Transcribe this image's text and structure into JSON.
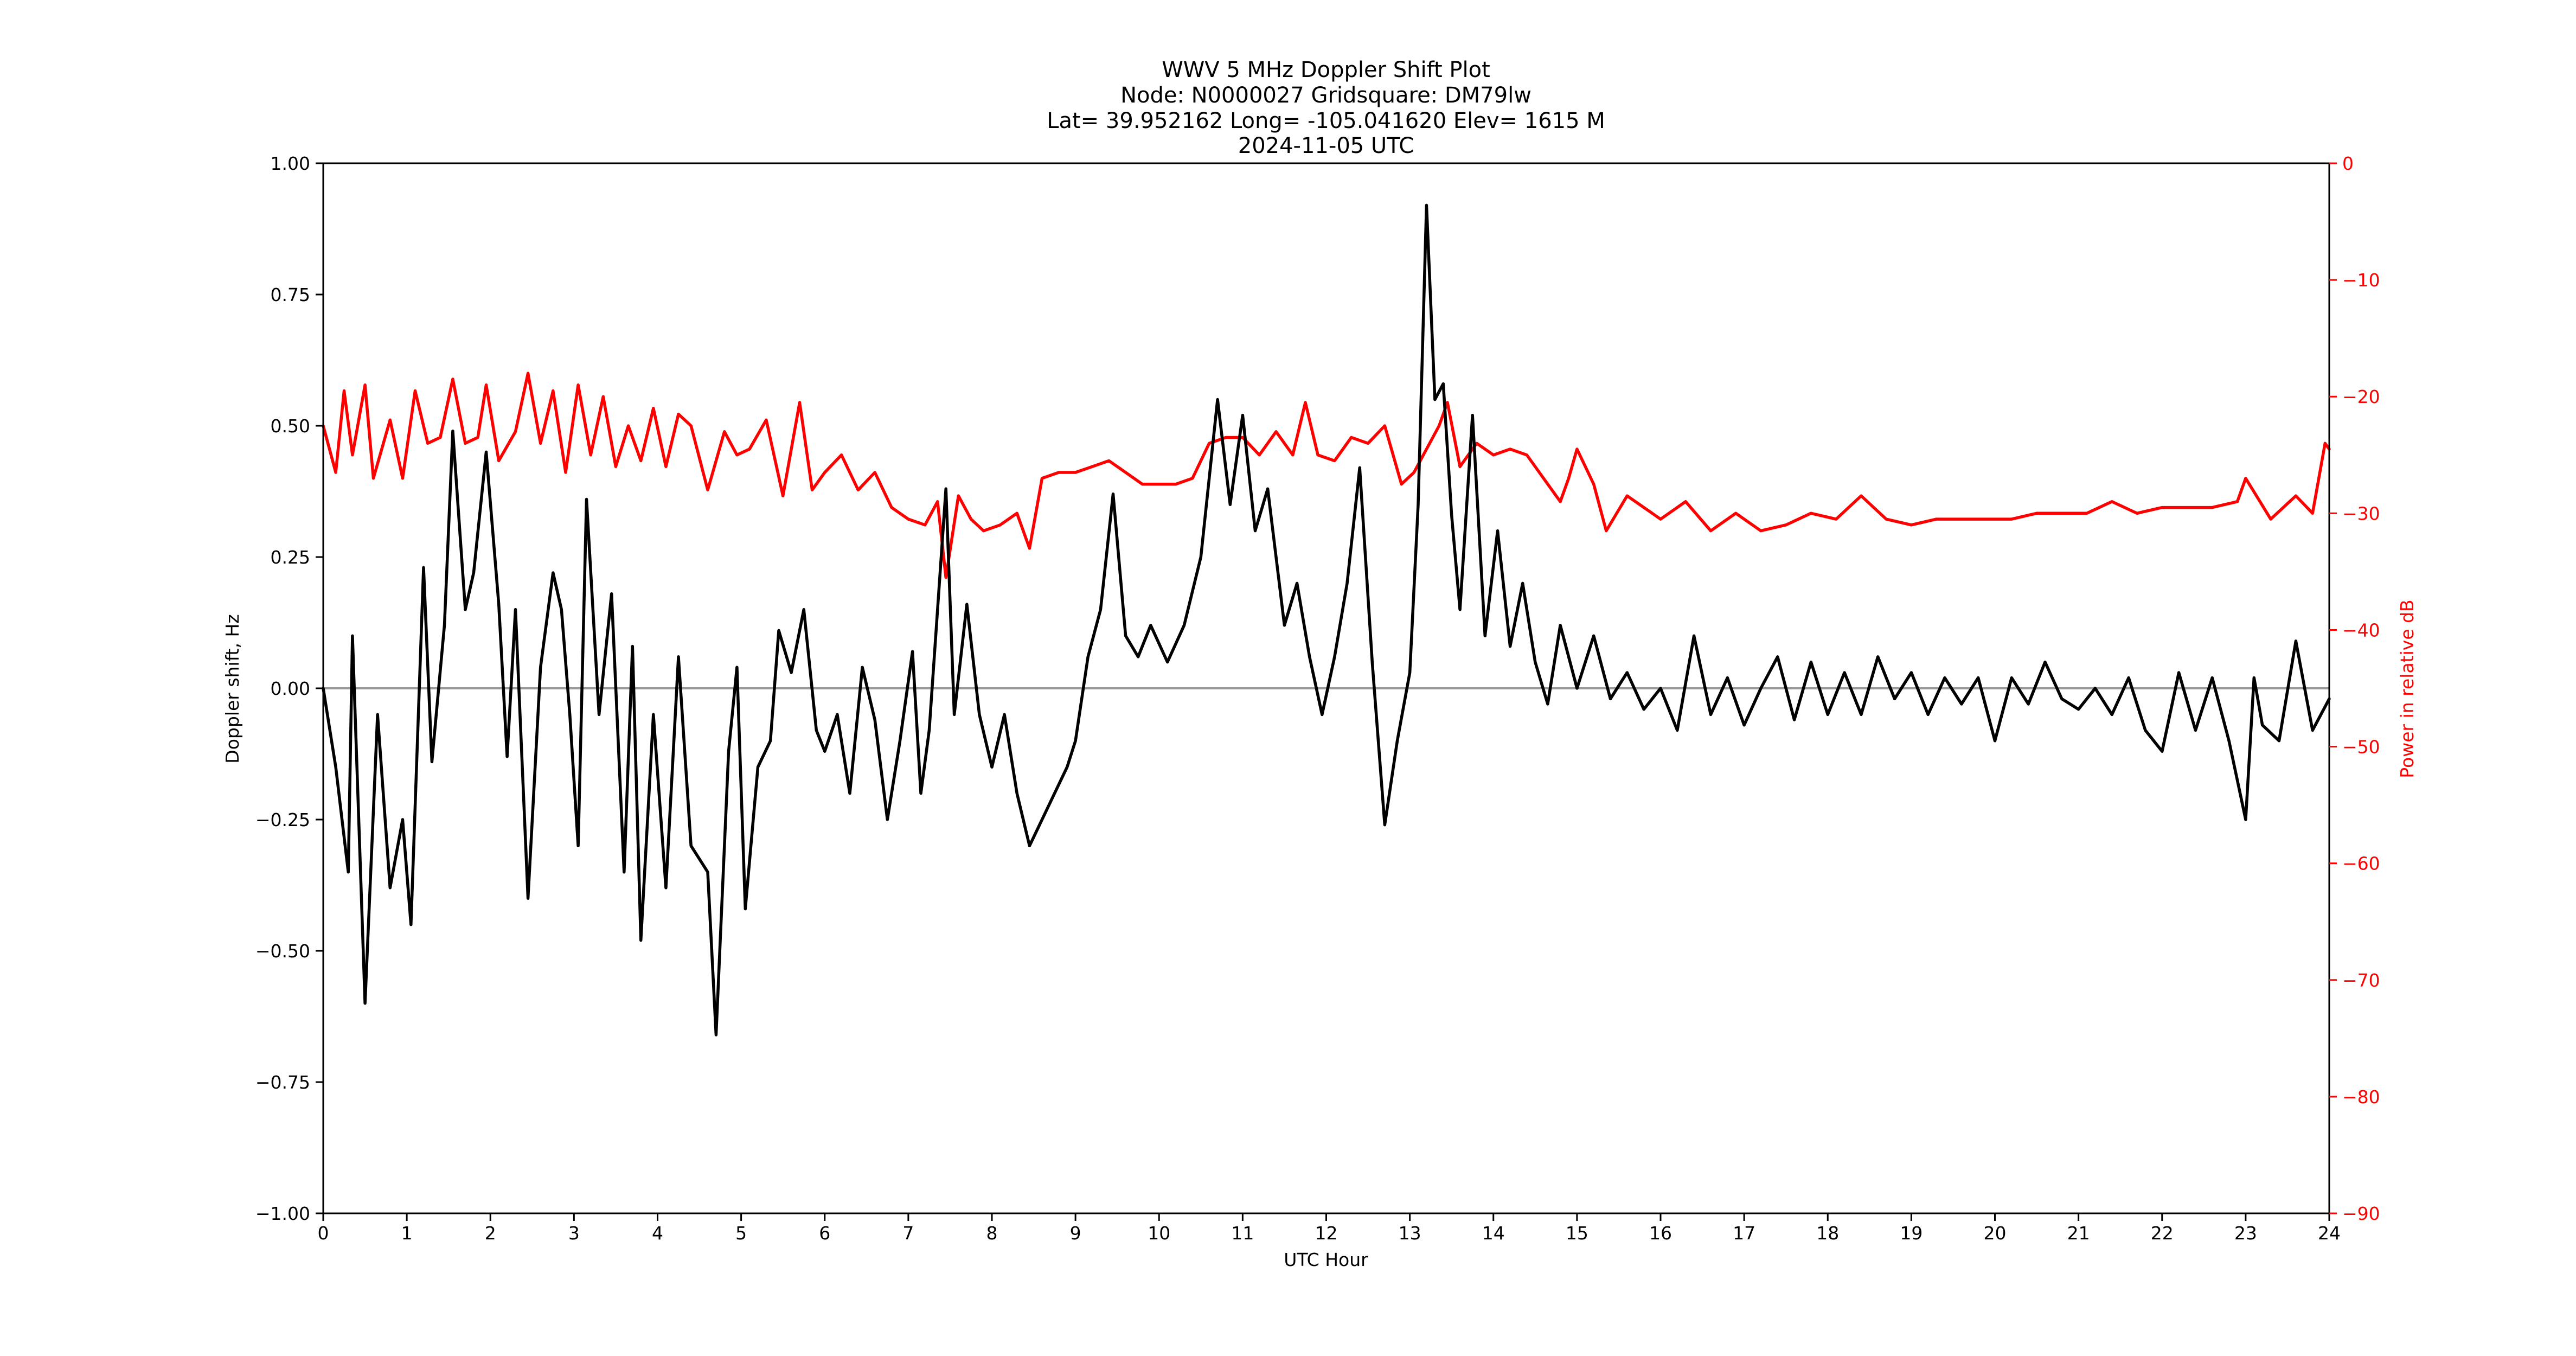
{
  "chart_data": {
    "type": "line",
    "title_lines": [
      "WWV 5 MHz Doppler Shift Plot",
      "Node:  N0000027     Gridsquare:  DM79lw",
      "Lat= 39.952162    Long= -105.041620    Elev= 1615 M",
      "2024-11-05  UTC"
    ],
    "xlabel": "UTC Hour",
    "ylabel_left": "Doppler shift, Hz",
    "ylabel_right": "Power in relative dB",
    "xlim": [
      0,
      24
    ],
    "ylim_left": [
      -1.0,
      1.0
    ],
    "ylim_right": [
      -90,
      0
    ],
    "x_ticks": [
      "0",
      "1",
      "2",
      "3",
      "4",
      "5",
      "6",
      "7",
      "8",
      "9",
      "10",
      "11",
      "12",
      "13",
      "14",
      "15",
      "16",
      "17",
      "18",
      "19",
      "20",
      "21",
      "22",
      "23",
      "24"
    ],
    "y_ticks_left": [
      "1.00",
      "0.75",
      "0.50",
      "0.25",
      "0.00",
      "−0.25",
      "−0.50",
      "−0.75",
      "−1.00"
    ],
    "y_ticks_right": [
      "0",
      "−10",
      "−20",
      "−30",
      "−40",
      "−50",
      "−60",
      "−70",
      "−80",
      "−90"
    ],
    "colors": {
      "doppler": "#000000",
      "power": "#ff0000",
      "zero_line": "#999999",
      "right_axis": "#ff0000"
    },
    "reference_line": {
      "y": 0.0
    },
    "series": [
      {
        "axis": "left",
        "x": [
          0.0,
          0.15,
          0.3,
          0.35,
          0.5,
          0.65,
          0.8,
          0.95,
          1.05,
          1.2,
          1.3,
          1.45,
          1.55,
          1.7,
          1.8,
          1.95,
          2.1,
          2.2,
          2.3,
          2.45,
          2.6,
          2.75,
          2.85,
          2.95,
          3.05,
          3.15,
          3.3,
          3.45,
          3.6,
          3.7,
          3.8,
          3.95,
          4.1,
          4.25,
          4.4,
          4.6,
          4.7,
          4.85,
          4.95,
          5.05,
          5.2,
          5.35,
          5.45,
          5.6,
          5.75,
          5.9,
          6.0,
          6.15,
          6.3,
          6.45,
          6.6,
          6.75,
          6.9,
          7.05,
          7.15,
          7.25,
          7.45,
          7.55,
          7.7,
          7.85,
          8.0,
          8.15,
          8.3,
          8.45,
          8.6,
          8.75,
          8.9,
          9.0,
          9.15,
          9.3,
          9.45,
          9.6,
          9.75,
          9.9,
          10.1,
          10.3,
          10.5,
          10.7,
          10.85,
          11.0,
          11.15,
          11.3,
          11.5,
          11.65,
          11.8,
          11.95,
          12.1,
          12.25,
          12.4,
          12.55,
          12.7,
          12.85,
          13.0,
          13.1,
          13.2,
          13.3,
          13.4,
          13.5,
          13.6,
          13.75,
          13.9,
          14.05,
          14.2,
          14.35,
          14.5,
          14.65,
          14.8,
          15.0,
          15.2,
          15.4,
          15.6,
          15.8,
          16.0,
          16.2,
          16.4,
          16.6,
          16.8,
          17.0,
          17.2,
          17.4,
          17.6,
          17.8,
          18.0,
          18.2,
          18.4,
          18.6,
          18.8,
          19.0,
          19.2,
          19.4,
          19.6,
          19.8,
          20.0,
          20.2,
          20.4,
          20.6,
          20.8,
          21.0,
          21.2,
          21.4,
          21.6,
          21.8,
          22.0,
          22.2,
          22.4,
          22.6,
          22.8,
          23.0,
          23.1,
          23.2,
          23.4,
          23.6,
          23.8,
          24.0
        ],
        "values": [
          0.0,
          -0.15,
          -0.35,
          0.1,
          -0.6,
          -0.05,
          -0.38,
          -0.25,
          -0.45,
          0.23,
          -0.14,
          0.12,
          0.49,
          0.15,
          0.22,
          0.45,
          0.16,
          -0.13,
          0.15,
          -0.4,
          0.04,
          0.22,
          0.15,
          -0.05,
          -0.3,
          0.36,
          -0.05,
          0.18,
          -0.35,
          0.08,
          -0.48,
          -0.05,
          -0.38,
          0.06,
          -0.3,
          -0.35,
          -0.66,
          -0.12,
          0.04,
          -0.42,
          -0.15,
          -0.1,
          0.11,
          0.03,
          0.15,
          -0.08,
          -0.12,
          -0.05,
          -0.2,
          0.04,
          -0.06,
          -0.25,
          -0.1,
          0.07,
          -0.2,
          -0.08,
          0.38,
          -0.05,
          0.16,
          -0.05,
          -0.15,
          -0.05,
          -0.2,
          -0.3,
          -0.25,
          -0.2,
          -0.15,
          -0.1,
          0.06,
          0.15,
          0.37,
          0.1,
          0.06,
          0.12,
          0.05,
          0.12,
          0.25,
          0.55,
          0.35,
          0.52,
          0.3,
          0.38,
          0.12,
          0.2,
          0.06,
          -0.05,
          0.06,
          0.2,
          0.42,
          0.05,
          -0.26,
          -0.1,
          0.03,
          0.35,
          0.92,
          0.55,
          0.58,
          0.33,
          0.15,
          0.52,
          0.1,
          0.3,
          0.08,
          0.2,
          0.05,
          -0.03,
          0.12,
          0.0,
          0.1,
          -0.02,
          0.03,
          -0.04,
          0.0,
          -0.08,
          0.1,
          -0.05,
          0.02,
          -0.07,
          0.0,
          0.06,
          -0.06,
          0.05,
          -0.05,
          0.03,
          -0.05,
          0.06,
          -0.02,
          0.03,
          -0.05,
          0.02,
          -0.03,
          0.02,
          -0.1,
          0.02,
          -0.03,
          0.05,
          -0.02,
          -0.04,
          0.0,
          -0.05,
          0.02,
          -0.08,
          -0.12,
          0.03,
          -0.08,
          0.02,
          -0.1,
          -0.25,
          0.02,
          -0.07,
          -0.1,
          0.09,
          -0.08,
          -0.02
        ]
      },
      {
        "axis": "right",
        "x": [
          0.0,
          0.15,
          0.25,
          0.35,
          0.5,
          0.6,
          0.8,
          0.95,
          1.1,
          1.25,
          1.4,
          1.55,
          1.7,
          1.85,
          1.95,
          2.1,
          2.3,
          2.45,
          2.6,
          2.75,
          2.9,
          3.05,
          3.2,
          3.35,
          3.5,
          3.65,
          3.8,
          3.95,
          4.1,
          4.25,
          4.4,
          4.6,
          4.8,
          4.95,
          5.1,
          5.3,
          5.5,
          5.7,
          5.85,
          6.0,
          6.2,
          6.4,
          6.6,
          6.8,
          7.0,
          7.2,
          7.35,
          7.45,
          7.6,
          7.75,
          7.9,
          8.1,
          8.3,
          8.45,
          8.6,
          8.8,
          9.0,
          9.2,
          9.4,
          9.6,
          9.8,
          10.0,
          10.2,
          10.4,
          10.6,
          10.8,
          11.0,
          11.2,
          11.4,
          11.6,
          11.75,
          11.9,
          12.1,
          12.3,
          12.5,
          12.7,
          12.9,
          13.05,
          13.2,
          13.35,
          13.45,
          13.6,
          13.8,
          14.0,
          14.2,
          14.4,
          14.6,
          14.8,
          14.9,
          15.0,
          15.2,
          15.35,
          15.6,
          15.8,
          16.0,
          16.3,
          16.6,
          16.9,
          17.2,
          17.5,
          17.8,
          18.1,
          18.4,
          18.7,
          19.0,
          19.3,
          19.6,
          19.9,
          20.2,
          20.5,
          20.8,
          21.1,
          21.4,
          21.7,
          22.0,
          22.3,
          22.6,
          22.9,
          23.0,
          23.3,
          23.6,
          23.8,
          23.95,
          24.0
        ],
        "values": [
          -22.5,
          -26.5,
          -19.5,
          -25,
          -19,
          -27,
          -22,
          -27,
          -19.5,
          -24,
          -23.5,
          -18.5,
          -24,
          -23.5,
          -19,
          -25.5,
          -23,
          -18,
          -24,
          -19.5,
          -26.5,
          -19,
          -25,
          -20,
          -26,
          -22.5,
          -25.5,
          -21,
          -26,
          -21.5,
          -22.5,
          -28,
          -23,
          -25,
          -24.5,
          -22,
          -28.5,
          -20.5,
          -28,
          -26.5,
          -25,
          -28,
          -26.5,
          -29.5,
          -30.5,
          -31,
          -29,
          -35.5,
          -28.5,
          -30.5,
          -31.5,
          -31,
          -30,
          -33,
          -27,
          -26.5,
          -26.5,
          -26,
          -25.5,
          -26.5,
          -27.5,
          -27.5,
          -27.5,
          -27,
          -24,
          -23.5,
          -23.5,
          -25,
          -23,
          -25,
          -20.5,
          -25,
          -25.5,
          -23.5,
          -24,
          -22.5,
          -27.5,
          -26.5,
          -24.5,
          -22.5,
          -20.5,
          -26,
          -24,
          -25,
          -24.5,
          -25,
          -27,
          -29,
          -27,
          -24.5,
          -27.5,
          -31.5,
          -28.5,
          -29.5,
          -30.5,
          -29,
          -31.5,
          -30,
          -31.5,
          -31,
          -30,
          -30.5,
          -28.5,
          -30.5,
          -31,
          -30.5,
          -30.5,
          -30.5,
          -30.5,
          -30,
          -30,
          -30,
          -29,
          -30,
          -29.5,
          -29.5,
          -29.5,
          -29,
          -27,
          -30.5,
          -28.5,
          -30,
          -24,
          -24.5
        ]
      }
    ]
  }
}
